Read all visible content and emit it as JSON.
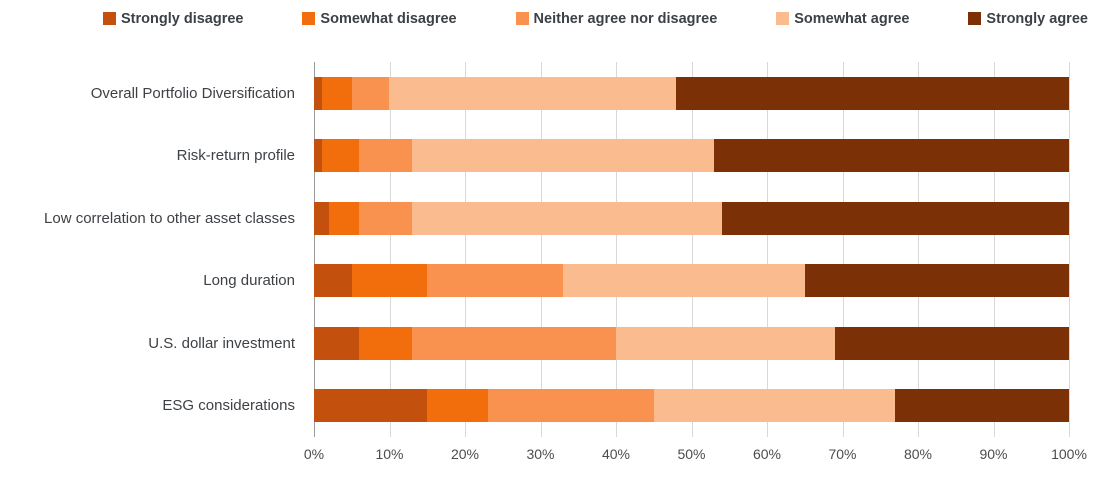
{
  "chart_data": {
    "type": "bar",
    "stacked": true,
    "orientation": "horizontal",
    "title": "",
    "categories": [
      "Overall Portfolio Diversification",
      "Risk-return profile",
      "Low correlation to other asset classes",
      "Long duration",
      "U.S. dollar investment",
      "ESG considerations"
    ],
    "series": [
      {
        "name": "Strongly disagree",
        "color": "#c3500c",
        "values": [
          1,
          1,
          2,
          5,
          6,
          15
        ]
      },
      {
        "name": "Somewhat disagree",
        "color": "#f26d0c",
        "values": [
          4,
          5,
          4,
          10,
          7,
          8
        ]
      },
      {
        "name": "Neither agree nor disagree",
        "color": "#f8924e",
        "values": [
          5,
          7,
          7,
          18,
          27,
          22
        ]
      },
      {
        "name": "Somewhat agree",
        "color": "#fabb8f",
        "values": [
          38,
          40,
          41,
          32,
          29,
          32
        ]
      },
      {
        "name": "Strongly agree",
        "color": "#7b3005",
        "values": [
          52,
          47,
          46,
          35,
          31,
          23
        ]
      }
    ],
    "x_axis": {
      "min": 0,
      "max": 100,
      "tick_step": 10,
      "ticks": [
        "0%",
        "10%",
        "20%",
        "30%",
        "40%",
        "50%",
        "60%",
        "70%",
        "80%",
        "90%",
        "100%"
      ]
    },
    "grid": true,
    "legend_position": "top",
    "colors": {
      "gridline": "#d8d8d8",
      "axis_line": "#9b9b9b",
      "label_text": "#3d4145",
      "tick_text": "#4c4c4c",
      "background": "#ffffff"
    }
  }
}
